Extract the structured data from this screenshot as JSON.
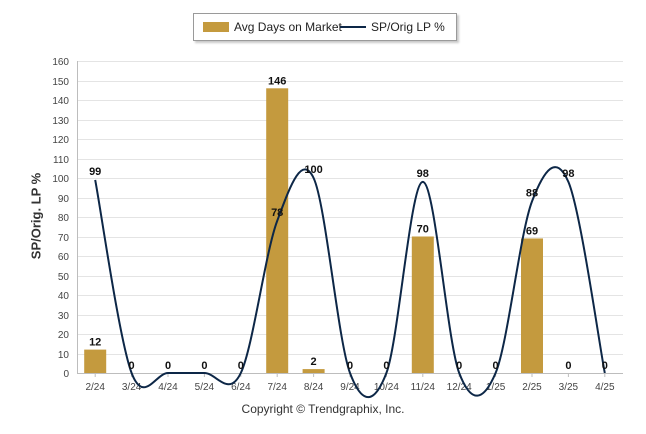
{
  "legend": {
    "bar_label": "Avg Days on Market",
    "line_label": "SP/Orig LP %"
  },
  "footer": {
    "copyright": "Copyright © Trendgraphix, Inc."
  },
  "colors": {
    "bar": "#c49a3e",
    "line": "#0d2747",
    "grid": "#e4e4e4"
  },
  "chart_data": {
    "type": "bar",
    "categories": [
      "2/24",
      "3/24",
      "4/24",
      "5/24",
      "6/24",
      "7/24",
      "8/24",
      "9/24",
      "10/24",
      "11/24",
      "12/24",
      "1/25",
      "2/25",
      "3/25",
      "4/25"
    ],
    "ylabel": "SP/Orig. LP %",
    "ylim": [
      0,
      160
    ],
    "yticks": [
      0,
      10,
      20,
      30,
      40,
      50,
      60,
      70,
      80,
      90,
      100,
      110,
      120,
      130,
      140,
      150,
      160
    ],
    "grid": true,
    "legend_position": "top",
    "series": [
      {
        "name": "Avg Days on Market",
        "type": "bar",
        "values": [
          12,
          0,
          0,
          0,
          0,
          146,
          2,
          0,
          0,
          70,
          0,
          0,
          69,
          0,
          0
        ]
      },
      {
        "name": "SP/Orig LP %",
        "type": "line",
        "smooth": true,
        "values": [
          99,
          0,
          0,
          0,
          0,
          78,
          100,
          0,
          0,
          98,
          0,
          0,
          88,
          98,
          0
        ]
      }
    ]
  }
}
